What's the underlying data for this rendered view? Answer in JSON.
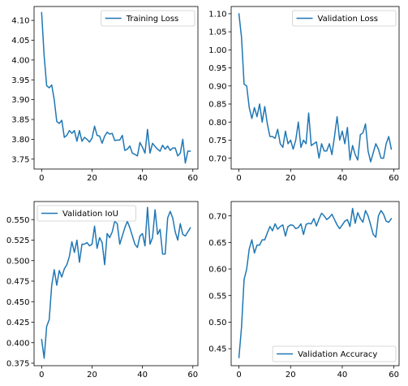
{
  "chart_data": [
    {
      "type": "line",
      "legend_position": "upper right",
      "series": [
        {
          "name": "Training Loss",
          "color": "#1f77b4",
          "x": [
            0,
            1,
            2,
            3,
            4,
            5,
            6,
            7,
            8,
            9,
            10,
            11,
            12,
            13,
            14,
            15,
            16,
            17,
            18,
            19,
            20,
            21,
            22,
            23,
            24,
            25,
            26,
            27,
            28,
            29,
            30,
            31,
            32,
            33,
            34,
            35,
            36,
            37,
            38,
            39,
            40,
            41,
            42,
            43,
            44,
            45,
            46,
            47,
            48,
            49,
            50,
            51,
            52,
            53,
            54,
            55,
            56,
            57,
            58,
            59
          ],
          "y": [
            4.12,
            4.01,
            3.935,
            3.93,
            3.937,
            3.9,
            3.845,
            3.84,
            3.848,
            3.805,
            3.81,
            3.822,
            3.815,
            3.822,
            3.795,
            3.822,
            3.795,
            3.805,
            3.8,
            3.793,
            3.803,
            3.833,
            3.81,
            3.808,
            3.79,
            3.808,
            3.818,
            3.813,
            3.815,
            3.797,
            3.798,
            3.798,
            3.81,
            3.772,
            3.775,
            3.783,
            3.765,
            3.762,
            3.758,
            3.792,
            3.78,
            3.765,
            3.825,
            3.765,
            3.79,
            3.782,
            3.775,
            3.77,
            3.785,
            3.775,
            3.783,
            3.772,
            3.778,
            3.778,
            3.758,
            3.765,
            3.8,
            3.74,
            3.77,
            3.77
          ]
        }
      ],
      "xlim": [
        -3,
        62
      ],
      "ylim": [
        3.725,
        4.135
      ],
      "xticks": [
        0,
        20,
        40,
        60
      ],
      "yticks": [
        3.75,
        3.8,
        3.85,
        3.9,
        3.95,
        4.0,
        4.05,
        4.1
      ],
      "ytick_labels": [
        "3.75",
        "3.80",
        "3.85",
        "3.90",
        "3.95",
        "4.00",
        "4.05",
        "4.10"
      ]
    },
    {
      "type": "line",
      "legend_position": "upper right",
      "series": [
        {
          "name": "Validation Loss",
          "color": "#1f77b4",
          "x": [
            0,
            1,
            2,
            3,
            4,
            5,
            6,
            7,
            8,
            9,
            10,
            11,
            12,
            13,
            14,
            15,
            16,
            17,
            18,
            19,
            20,
            21,
            22,
            23,
            24,
            25,
            26,
            27,
            28,
            29,
            30,
            31,
            32,
            33,
            34,
            35,
            36,
            37,
            38,
            39,
            40,
            41,
            42,
            43,
            44,
            45,
            46,
            47,
            48,
            49,
            50,
            51,
            52,
            53,
            54,
            55,
            56,
            57,
            58,
            59
          ],
          "y": [
            1.1,
            1.035,
            0.905,
            0.9,
            0.84,
            0.81,
            0.84,
            0.815,
            0.85,
            0.8,
            0.843,
            0.795,
            0.76,
            0.76,
            0.755,
            0.78,
            0.74,
            0.73,
            0.775,
            0.74,
            0.75,
            0.725,
            0.75,
            0.8,
            0.73,
            0.75,
            0.74,
            0.825,
            0.735,
            0.74,
            0.745,
            0.7,
            0.74,
            0.72,
            0.72,
            0.74,
            0.71,
            0.76,
            0.815,
            0.75,
            0.775,
            0.74,
            0.785,
            0.695,
            0.735,
            0.71,
            0.695,
            0.765,
            0.77,
            0.795,
            0.72,
            0.69,
            0.715,
            0.74,
            0.725,
            0.7,
            0.7,
            0.74,
            0.76,
            0.725
          ]
        }
      ],
      "xlim": [
        -3,
        62
      ],
      "ylim": [
        0.67,
        1.12
      ],
      "xticks": [
        0,
        20,
        40,
        60
      ],
      "yticks": [
        0.7,
        0.75,
        0.8,
        0.85,
        0.9,
        0.95,
        1.0,
        1.05,
        1.1
      ],
      "ytick_labels": [
        "0.70",
        "0.75",
        "0.80",
        "0.85",
        "0.90",
        "0.95",
        "1.00",
        "1.05",
        "1.10"
      ]
    },
    {
      "type": "line",
      "legend_position": "upper left",
      "series": [
        {
          "name": "Validation IoU",
          "color": "#1f77b4",
          "x": [
            0,
            1,
            2,
            3,
            4,
            5,
            6,
            7,
            8,
            9,
            10,
            11,
            12,
            13,
            14,
            15,
            16,
            17,
            18,
            19,
            20,
            21,
            22,
            23,
            24,
            25,
            26,
            27,
            28,
            29,
            30,
            31,
            32,
            33,
            34,
            35,
            36,
            37,
            38,
            39,
            40,
            41,
            42,
            43,
            44,
            45,
            46,
            47,
            48,
            49,
            50,
            51,
            52,
            53,
            54,
            55,
            56,
            57,
            58,
            59
          ],
          "y": [
            0.404,
            0.381,
            0.42,
            0.428,
            0.47,
            0.489,
            0.47,
            0.488,
            0.48,
            0.49,
            0.495,
            0.505,
            0.523,
            0.51,
            0.525,
            0.498,
            0.52,
            0.52,
            0.522,
            0.518,
            0.52,
            0.542,
            0.515,
            0.528,
            0.522,
            0.495,
            0.533,
            0.528,
            0.535,
            0.548,
            0.545,
            0.52,
            0.53,
            0.54,
            0.548,
            0.54,
            0.53,
            0.52,
            0.516,
            0.53,
            0.533,
            0.518,
            0.565,
            0.52,
            0.528,
            0.562,
            0.532,
            0.538,
            0.508,
            0.508,
            0.552,
            0.56,
            0.552,
            0.535,
            0.525,
            0.545,
            0.532,
            0.53,
            0.535,
            0.54
          ]
        }
      ],
      "xlim": [
        -3,
        62
      ],
      "ylim": [
        0.372,
        0.572
      ],
      "xticks": [
        0,
        20,
        40,
        60
      ],
      "yticks": [
        0.375,
        0.4,
        0.425,
        0.45,
        0.475,
        0.5,
        0.525,
        0.55
      ],
      "ytick_labels": [
        "0.375",
        "0.400",
        "0.425",
        "0.450",
        "0.475",
        "0.500",
        "0.525",
        "0.550"
      ]
    },
    {
      "type": "line",
      "legend_position": "lower right",
      "series": [
        {
          "name": "Validation Accuracy",
          "color": "#1f77b4",
          "x": [
            0,
            1,
            2,
            3,
            4,
            5,
            6,
            7,
            8,
            9,
            10,
            11,
            12,
            13,
            14,
            15,
            16,
            17,
            18,
            19,
            20,
            21,
            22,
            23,
            24,
            25,
            26,
            27,
            28,
            29,
            30,
            31,
            32,
            33,
            34,
            35,
            36,
            37,
            38,
            39,
            40,
            41,
            42,
            43,
            44,
            45,
            46,
            47,
            48,
            49,
            50,
            51,
            52,
            53,
            54,
            55,
            56,
            57,
            58,
            59
          ],
          "y": [
            0.433,
            0.49,
            0.58,
            0.6,
            0.638,
            0.655,
            0.63,
            0.645,
            0.645,
            0.655,
            0.655,
            0.668,
            0.68,
            0.672,
            0.685,
            0.675,
            0.68,
            0.683,
            0.662,
            0.68,
            0.683,
            0.682,
            0.676,
            0.678,
            0.685,
            0.665,
            0.684,
            0.686,
            0.685,
            0.695,
            0.681,
            0.694,
            0.705,
            0.7,
            0.693,
            0.697,
            0.703,
            0.693,
            0.683,
            0.676,
            0.683,
            0.69,
            0.693,
            0.68,
            0.714,
            0.686,
            0.706,
            0.695,
            0.688,
            0.71,
            0.7,
            0.683,
            0.665,
            0.66,
            0.7,
            0.71,
            0.703,
            0.69,
            0.688,
            0.695
          ]
        }
      ],
      "xlim": [
        -3,
        62
      ],
      "ylim": [
        0.418,
        0.727
      ],
      "xticks": [
        0,
        20,
        40,
        60
      ],
      "yticks": [
        0.45,
        0.5,
        0.55,
        0.6,
        0.65,
        0.7
      ],
      "ytick_labels": [
        "0.45",
        "0.50",
        "0.55",
        "0.60",
        "0.65",
        "0.70"
      ]
    }
  ]
}
